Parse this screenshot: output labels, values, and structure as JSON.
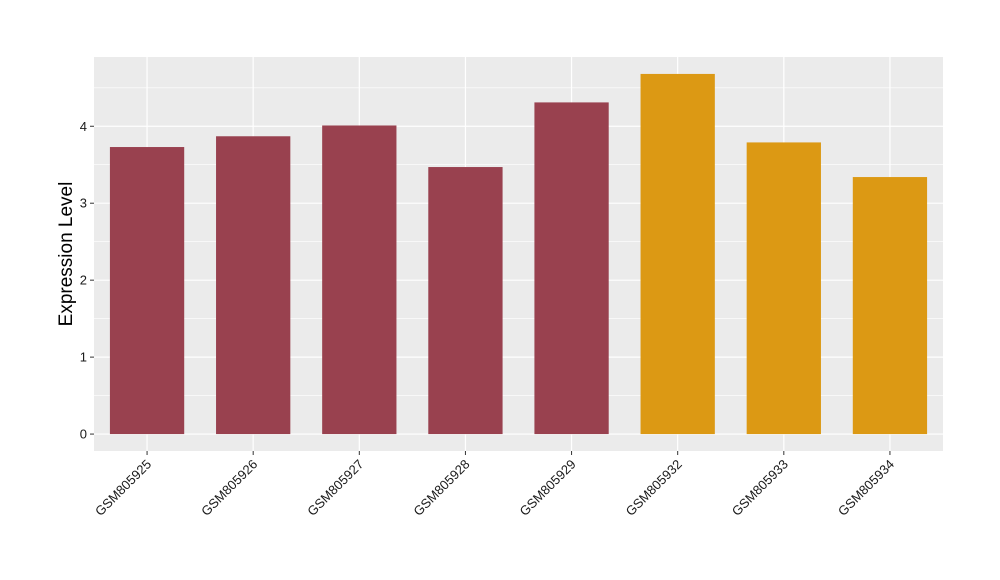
{
  "chart_data": {
    "type": "bar",
    "title": "",
    "xlabel": "",
    "ylabel": "Expression Level",
    "categories": [
      "GSM805925",
      "GSM805926",
      "GSM805927",
      "GSM805928",
      "GSM805929",
      "GSM805932",
      "GSM805933",
      "GSM805934"
    ],
    "values": [
      3.73,
      3.87,
      4.01,
      3.47,
      4.31,
      4.68,
      3.79,
      3.34
    ],
    "groups": [
      "group1",
      "group1",
      "group1",
      "group1",
      "group1",
      "group2",
      "group2",
      "group2"
    ],
    "group_colors": {
      "group1": "#99414f",
      "group2": "#dc9914"
    },
    "ylim": [
      -0.22,
      4.9
    ],
    "yticks": [
      0,
      1,
      2,
      3,
      4
    ],
    "grid": true,
    "panel_background": "#ebebeb",
    "grid_color": "#ffffff",
    "legend": "none"
  }
}
